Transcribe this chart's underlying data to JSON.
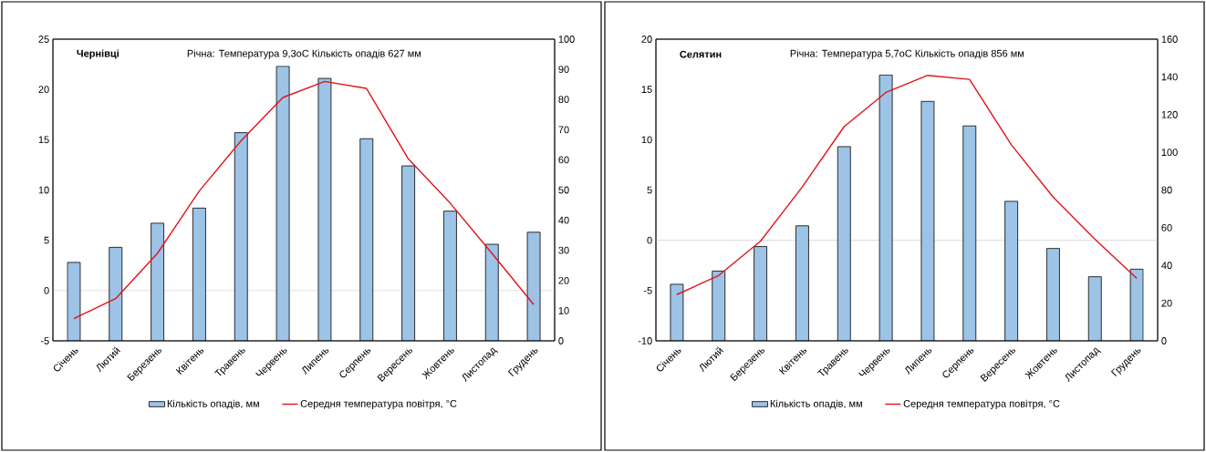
{
  "chart_data": [
    {
      "type": "bar",
      "categories": [
        "Січень",
        "Лютий",
        "Березень",
        "Квітень",
        "Травень",
        "Червень",
        "Липень",
        "Серпень",
        "Вересень",
        "Жовтень",
        "Листопад",
        "Грудень"
      ],
      "series": [
        {
          "name": "Кількість опадів, мм",
          "axis": "y2",
          "color": "#9dc3e6",
          "values": [
            26,
            31,
            39,
            44,
            69,
            91,
            87,
            67,
            58,
            43,
            32,
            36
          ]
        },
        {
          "name": "Середня температура повітря, °C",
          "type": "line",
          "axis": "y",
          "color": "#e3121b",
          "values": [
            -2.8,
            -0.8,
            3.7,
            9.9,
            14.9,
            19.2,
            20.8,
            20.1,
            13.1,
            8.7,
            3.7,
            -1.4
          ]
        }
      ],
      "ylim": [
        -5,
        25
      ],
      "yticks": [
        -5,
        0,
        5,
        10,
        15,
        20,
        25
      ],
      "y2lim": [
        0,
        100
      ],
      "y2ticks": [
        0,
        10,
        20,
        30,
        40,
        50,
        60,
        70,
        80,
        90,
        100
      ],
      "ref_lines": [
        {
          "axis": "y",
          "value": 0,
          "color": "#d9d9d9"
        }
      ],
      "annotations": [
        "Чернівці",
        "Річна: Температура 9,3oC Кількість опадів 627 мм"
      ],
      "legend": "bottom"
    },
    {
      "type": "bar",
      "categories": [
        "Січень",
        "Лютий",
        "Березень",
        "Квітень",
        "Травень",
        "Червень",
        "Липень",
        "Серпень",
        "Вересень",
        "Жовтень",
        "Листопад",
        "Грудень"
      ],
      "series": [
        {
          "name": "Кількість опадів, мм",
          "axis": "y2",
          "color": "#9dc3e6",
          "values": [
            30,
            37,
            50,
            61,
            103,
            141,
            127,
            114,
            74,
            49,
            34,
            38
          ]
        },
        {
          "name": "Середня температура повітря, °C",
          "type": "line",
          "axis": "y",
          "color": "#e3121b",
          "values": [
            -5.4,
            -3.5,
            -0.1,
            5.3,
            11.3,
            14.7,
            16.4,
            16.0,
            9.5,
            4.3,
            0.1,
            -3.8
          ]
        }
      ],
      "ylim": [
        -10,
        20
      ],
      "yticks": [
        -10,
        -5,
        0,
        5,
        10,
        15,
        20
      ],
      "y2lim": [
        0,
        160
      ],
      "y2ticks": [
        0,
        20,
        40,
        60,
        80,
        100,
        120,
        140,
        160
      ],
      "ref_lines": [
        {
          "axis": "y",
          "value": 0,
          "color": "#d9d9d9"
        }
      ],
      "annotations": [
        "Селятин",
        "Річна: Температура 5,7oC Кількість опадів 856 мм"
      ],
      "legend": "bottom"
    }
  ]
}
